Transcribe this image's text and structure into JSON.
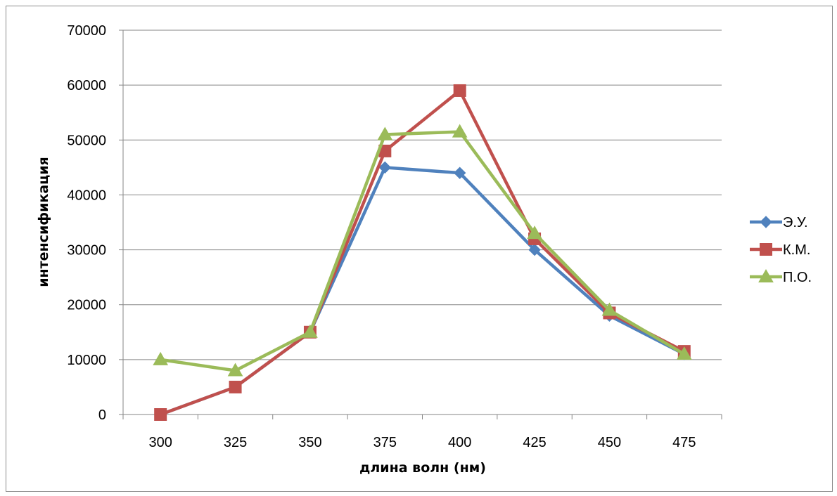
{
  "chart_data": {
    "type": "line",
    "categories": [
      "300",
      "325",
      "350",
      "375",
      "400",
      "425",
      "450",
      "475"
    ],
    "series": [
      {
        "name": "Э.У.",
        "values": [
          0,
          5000,
          15000,
          45000,
          44000,
          30000,
          18000,
          11000
        ],
        "color": "#4f81bd",
        "marker": "diamond"
      },
      {
        "name": "К.М.",
        "values": [
          0,
          5000,
          15000,
          48000,
          59000,
          32000,
          18500,
          11500
        ],
        "color": "#c0504d",
        "marker": "square"
      },
      {
        "name": "П.О.",
        "values": [
          10000,
          8000,
          15000,
          51000,
          51500,
          33000,
          19000,
          11000
        ],
        "color": "#9bbb59",
        "marker": "triangle"
      }
    ],
    "xlabel": "длина волн (нм)",
    "ylabel": "интенсификация",
    "ylim": [
      0,
      70000
    ],
    "yticks": [
      0,
      10000,
      20000,
      30000,
      40000,
      50000,
      60000,
      70000
    ],
    "grid": true,
    "legend_position": "right"
  }
}
